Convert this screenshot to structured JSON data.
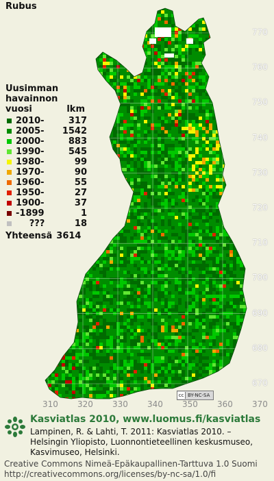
{
  "title": "Rubus",
  "legend": {
    "header_lines": [
      "Uusimman",
      "havainnon"
    ],
    "header_col1": "vuosi",
    "header_col2": "lkm",
    "rows": [
      {
        "label": "2010-",
        "count": "317",
        "color": "#006b00"
      },
      {
        "label": "2005-",
        "count": "1542",
        "color": "#008c00"
      },
      {
        "label": "2000-",
        "count": "883",
        "color": "#00c800"
      },
      {
        "label": "1990-",
        "count": "545",
        "color": "#5fe632"
      },
      {
        "label": "1980-",
        "count": "99",
        "color": "#f5f500"
      },
      {
        "label": "1970-",
        "count": "90",
        "color": "#f0a800"
      },
      {
        "label": "1960-",
        "count": "55",
        "color": "#ee6a00"
      },
      {
        "label": "1950-",
        "count": "27",
        "color": "#e02000"
      },
      {
        "label": "1900-",
        "count": "37",
        "color": "#c00000"
      },
      {
        "label": "-1899",
        "count": "1",
        "color": "#780000"
      },
      {
        "label": "???",
        "count": "18",
        "color": "#c0c0c0"
      }
    ],
    "total_label": "Yhteensä",
    "total_count": "3614"
  },
  "grid_axes": {
    "north": [
      "770",
      "760",
      "750",
      "740",
      "730",
      "720",
      "710",
      "700",
      "690",
      "680",
      "670"
    ],
    "east": [
      "310",
      "320",
      "330",
      "340",
      "350",
      "360",
      "370"
    ]
  },
  "license_badge": {
    "symbol": "cc",
    "text": "BY-NC-SA"
  },
  "footer": {
    "site": "Kasviatlas 2010, www.luomus.fi/kasviatlas",
    "reference": [
      "Lampinen, R. & Lahti, T. 2011: Kasviatlas 2010. –",
      "Helsingin Yliopisto, Luonnontieteellinen keskusmuseo,",
      "Kasvimuseo, Helsinki."
    ],
    "license": [
      "Creative Commons Nimeä-Epäkaupallinen-Tarttuva 1.0 Suomi",
      "http://creativecommons.org/licenses/by-nc-sa/1.0/fi"
    ]
  },
  "colors": {
    "background": "#f1f1e1",
    "land": "#0b8a12",
    "site_text": "#2c7a3a"
  }
}
